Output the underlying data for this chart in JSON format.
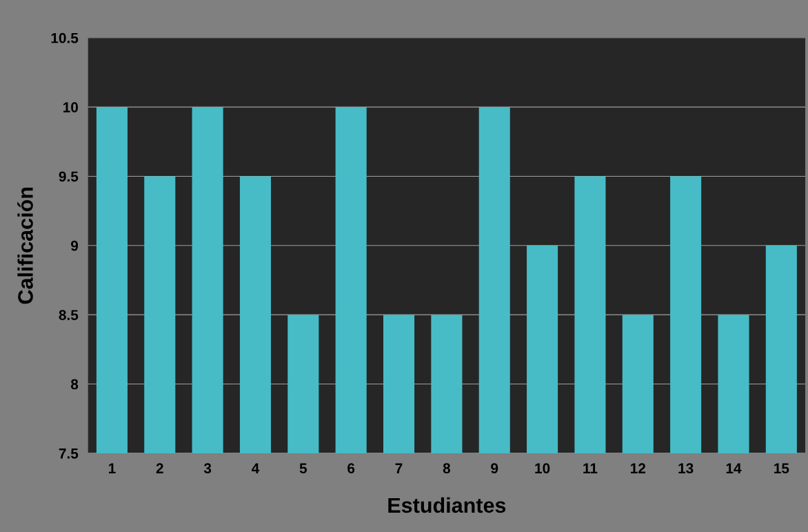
{
  "chart_data": {
    "type": "bar",
    "xlabel": "Estudiantes",
    "ylabel": "Calificación",
    "categories": [
      "1",
      "2",
      "3",
      "4",
      "5",
      "6",
      "7",
      "8",
      "9",
      "10",
      "11",
      "12",
      "13",
      "14",
      "15"
    ],
    "values": [
      10,
      9.5,
      10,
      9.5,
      8.5,
      10,
      8.5,
      8.5,
      10,
      9,
      9.5,
      8.5,
      9.5,
      8.5,
      9
    ],
    "color": "#47bcc6",
    "ylim": [
      7.5,
      10.5
    ],
    "yticks": [
      7.5,
      8,
      8.5,
      9,
      9.5,
      10,
      10.5
    ],
    "grid": "y",
    "legend": false
  }
}
